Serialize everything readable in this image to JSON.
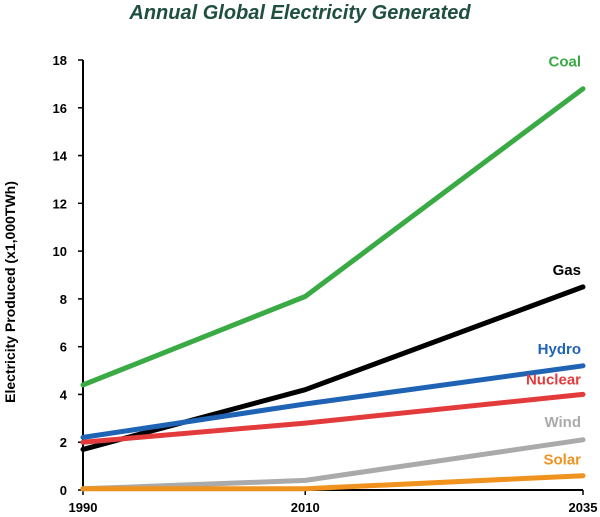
{
  "title_color": "#1f4f3e",
  "chart_data": {
    "type": "line",
    "title": "Annual Global Electricity Generated",
    "xlabel": "",
    "ylabel": "Electricity Produced (x1,000TWh)",
    "xlim": [
      1990,
      2035
    ],
    "ylim": [
      0,
      18
    ],
    "x_ticks": [
      "1990",
      "2010",
      "2035"
    ],
    "y_ticks": [
      "0",
      "2",
      "4",
      "6",
      "8",
      "10",
      "12",
      "14",
      "16",
      "18"
    ],
    "grid": false,
    "series": [
      {
        "name": "Coal",
        "color": "#3aaa44",
        "x": [
          1990,
          2010,
          2035
        ],
        "values": [
          4.4,
          8.1,
          16.8
        ]
      },
      {
        "name": "Gas",
        "color": "#000000",
        "x": [
          1990,
          2010,
          2035
        ],
        "values": [
          1.7,
          4.2,
          8.5
        ]
      },
      {
        "name": "Hydro",
        "color": "#1f63b5",
        "x": [
          1990,
          2010,
          2035
        ],
        "values": [
          2.2,
          3.6,
          5.2
        ]
      },
      {
        "name": "Nuclear",
        "color": "#e33b3b",
        "x": [
          1990,
          2010,
          2035
        ],
        "values": [
          2.0,
          2.8,
          4.0
        ]
      },
      {
        "name": "Wind",
        "color": "#aaaaaa",
        "x": [
          1990,
          2010,
          2035
        ],
        "values": [
          0.05,
          0.4,
          2.1
        ]
      },
      {
        "name": "Solar",
        "color": "#f0921e",
        "x": [
          1990,
          2010,
          2035
        ],
        "values": [
          0.05,
          0.05,
          0.6
        ]
      }
    ]
  }
}
